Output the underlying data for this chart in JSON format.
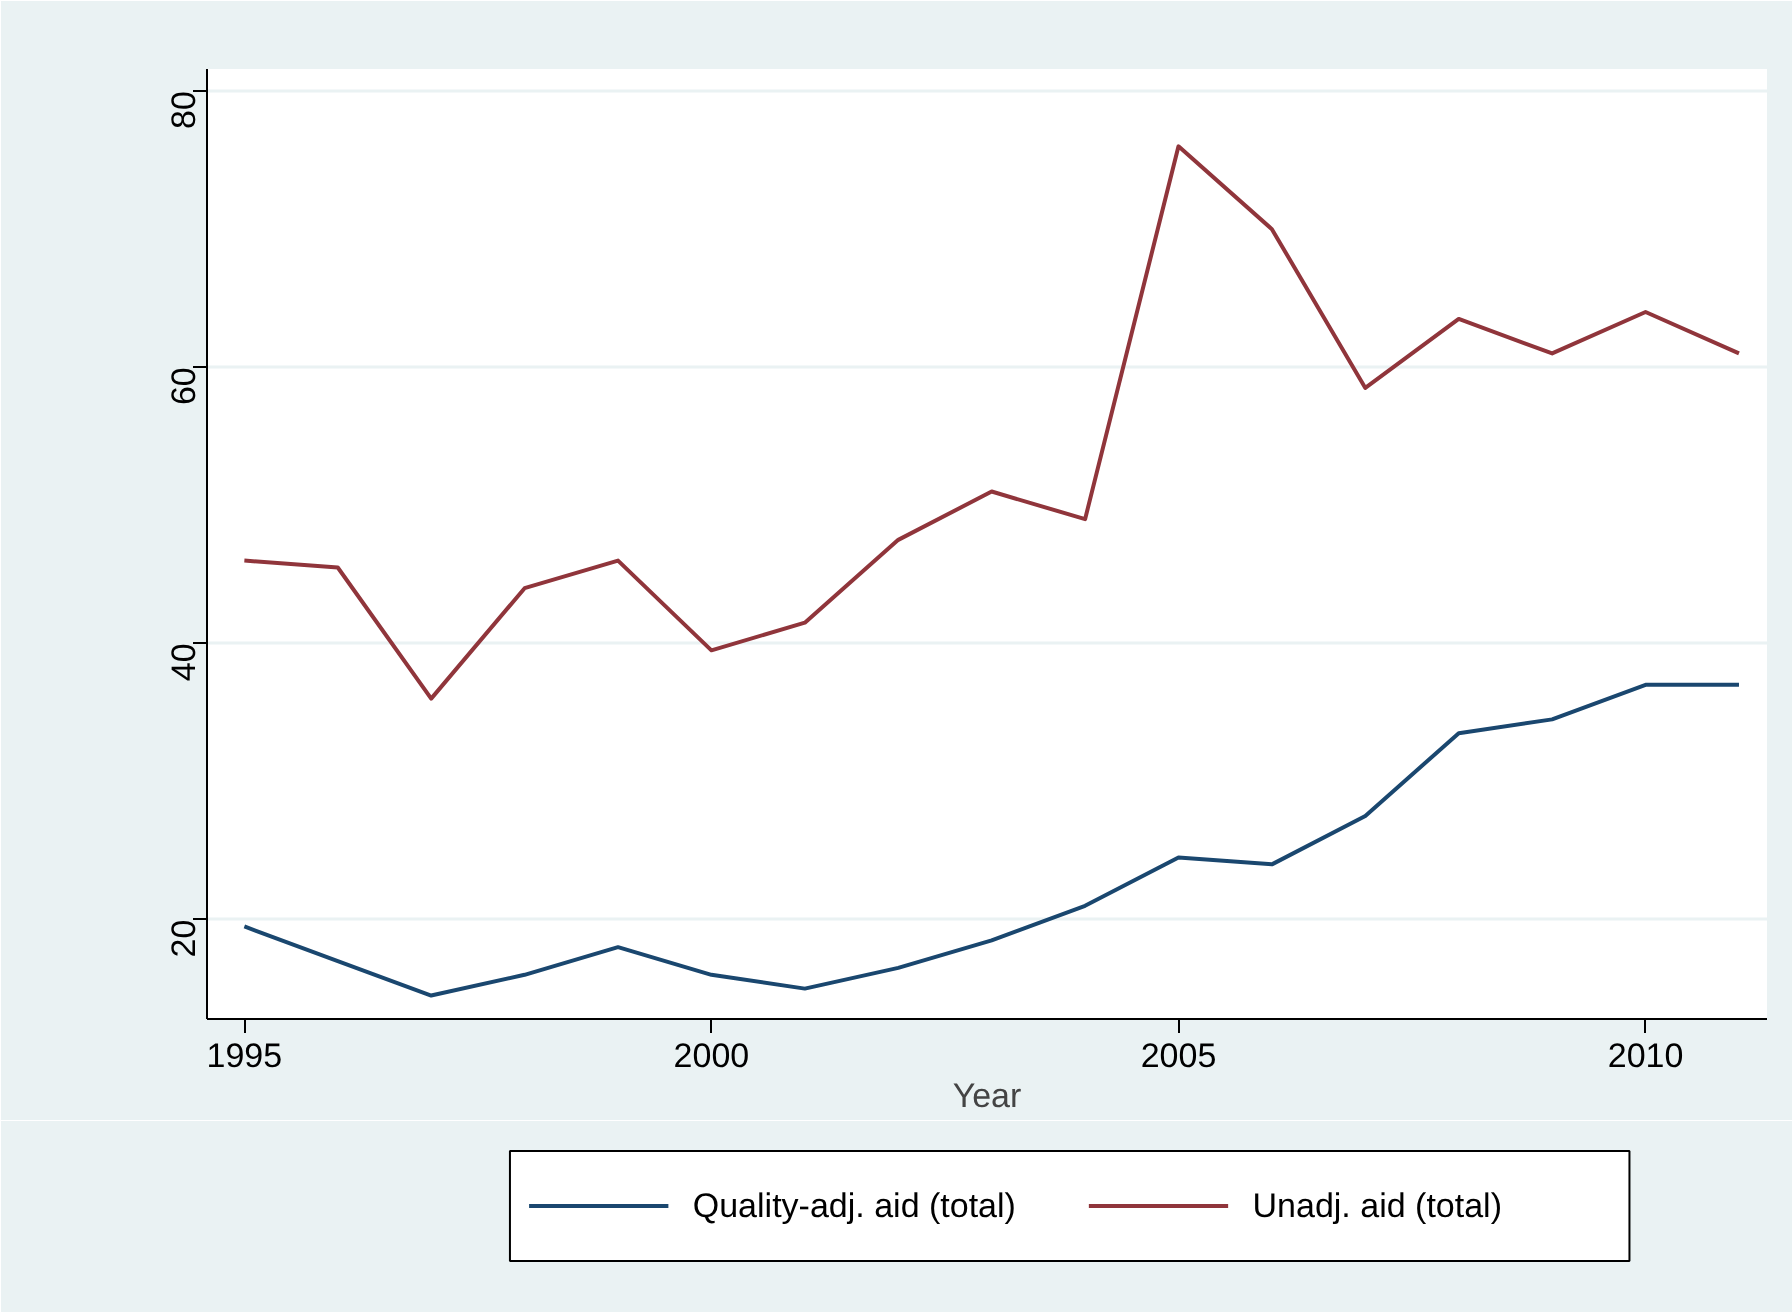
{
  "chart_data": {
    "type": "line",
    "xlabel": "Year",
    "x": [
      1995,
      1996,
      1997,
      1998,
      1999,
      2000,
      2001,
      2002,
      2003,
      2004,
      2005,
      2006,
      2007,
      2008,
      2009,
      2010,
      2011
    ],
    "series": [
      {
        "name": "Quality-adj. aid (total)",
        "color": "#1a476f",
        "values": [
          19.5,
          17,
          14.5,
          16,
          18,
          16,
          15,
          16.5,
          18.5,
          21,
          24.5,
          24,
          27.5,
          33.5,
          34.5,
          37,
          37
        ]
      },
      {
        "name": "Unadj. aid (total)",
        "color": "#90353b",
        "values": [
          46,
          45.5,
          36,
          44,
          46,
          39.5,
          41.5,
          47.5,
          51,
          49,
          76,
          70,
          58.5,
          63.5,
          61,
          64,
          61
        ]
      }
    ],
    "xlim": [
      1994.6,
      2011.3
    ],
    "ylim": [
      12.8,
      81.6
    ],
    "xticks": [
      1995,
      2000,
      2005,
      2010
    ],
    "yticks": [
      20,
      40,
      60,
      80
    ],
    "grid": "y",
    "legend": "bottom",
    "marker": "none",
    "line_style": "solid"
  }
}
